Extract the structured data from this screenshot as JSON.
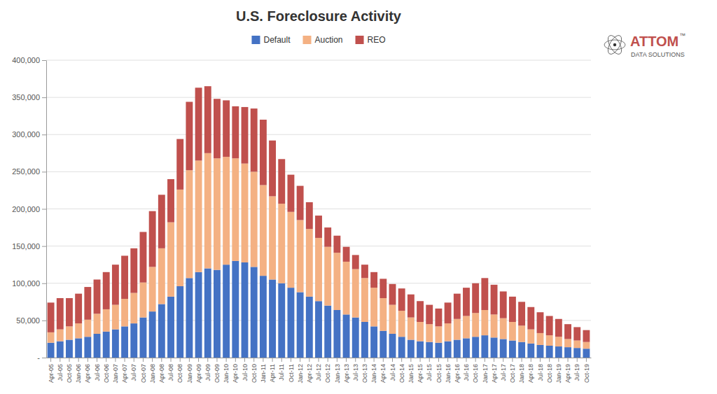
{
  "chart_data": {
    "type": "bar",
    "title": "U.S. Foreclosure Activity",
    "stacked": true,
    "grid": true,
    "legend": "top",
    "annotations": [
      "ATTOM",
      "DATA SOLUTIONS",
      "™"
    ],
    "categories": [
      "Apr-05",
      "Jul-05",
      "Oct-05",
      "Jan-06",
      "Apr-06",
      "Jul-06",
      "Oct-06",
      "Jan-07",
      "Apr-07",
      "Jul-07",
      "Oct-07",
      "Jan-08",
      "Apr-08",
      "Jul-08",
      "Oct-08",
      "Jan-09",
      "Apr-09",
      "Jul-09",
      "Oct-09",
      "Jan-10",
      "Apr-10",
      "Jul-10",
      "Oct-10",
      "Jan-11",
      "Apr-11",
      "Jul-11",
      "Oct-11",
      "Jan-12",
      "Apr-12",
      "Jul-12",
      "Oct-12",
      "Jan-13",
      "Apr-13",
      "Jul-13",
      "Oct-13",
      "Jan-14",
      "Apr-14",
      "Jul-14",
      "Oct-14",
      "Jan-15",
      "Apr-15",
      "Jul-15",
      "Oct-15",
      "Jan-16",
      "Apr-16",
      "Jul-16",
      "Oct-16",
      "Jan-17",
      "Apr-17",
      "Jul-17",
      "Oct-17",
      "Jan-18",
      "Apr-18",
      "Jul-18",
      "Oct-18",
      "Jan-19",
      "Apr-19",
      "Jul-19",
      "Oct-19"
    ],
    "series": [
      {
        "name": "Default",
        "color": "#4472C4",
        "values": [
          20000,
          22000,
          24000,
          26000,
          28000,
          32000,
          35000,
          38000,
          42000,
          46000,
          54000,
          62000,
          72000,
          82000,
          96000,
          107000,
          115000,
          120000,
          118000,
          125000,
          130000,
          128000,
          122000,
          110000,
          105000,
          100000,
          94000,
          88000,
          82000,
          76000,
          70000,
          64000,
          58000,
          54000,
          48000,
          42000,
          36000,
          32000,
          28000,
          24000,
          22000,
          21000,
          20000,
          22000,
          24000,
          26000,
          28000,
          30000,
          27000,
          25000,
          23000,
          21000,
          19000,
          17000,
          16000,
          15000,
          14000,
          13000,
          12000
        ]
      },
      {
        "name": "Auction",
        "color": "#F4B183",
        "values": [
          14000,
          16000,
          18000,
          20000,
          23000,
          27000,
          30000,
          33000,
          37000,
          41000,
          47000,
          60000,
          75000,
          100000,
          130000,
          145000,
          150000,
          155000,
          150000,
          145000,
          138000,
          133000,
          128000,
          122000,
          112000,
          107000,
          102000,
          97000,
          91000,
          85000,
          79000,
          77000,
          71000,
          65000,
          59000,
          52000,
          44000,
          39000,
          35000,
          30000,
          26000,
          24000,
          22000,
          24000,
          28000,
          30000,
          32000,
          34000,
          31000,
          28000,
          25000,
          22000,
          19000,
          16000,
          14000,
          13000,
          11000,
          10000,
          9000
        ]
      },
      {
        "name": "REO",
        "color": "#C0504D",
        "values": [
          40000,
          42000,
          38000,
          40000,
          44000,
          46000,
          50000,
          54000,
          58000,
          60000,
          68000,
          75000,
          72000,
          58000,
          68000,
          92000,
          98000,
          90000,
          80000,
          76000,
          70000,
          76000,
          85000,
          88000,
          75000,
          60000,
          50000,
          46000,
          36000,
          30000,
          26000,
          23000,
          20000,
          19000,
          18000,
          21000,
          26000,
          28000,
          30000,
          31000,
          28000,
          26000,
          24000,
          28000,
          34000,
          38000,
          40000,
          43000,
          40000,
          36000,
          34000,
          32000,
          30000,
          28000,
          26000,
          24000,
          20000,
          18000,
          16000
        ]
      }
    ],
    "ylim": [
      0,
      400000
    ],
    "yticks": [
      {
        "value": 0,
        "label": "-"
      },
      {
        "value": 50000,
        "label": "50,000"
      },
      {
        "value": 100000,
        "label": "100,000"
      },
      {
        "value": 150000,
        "label": "150,000"
      },
      {
        "value": 200000,
        "label": "200,000"
      },
      {
        "value": 250000,
        "label": "250,000"
      },
      {
        "value": 300000,
        "label": "300,000"
      },
      {
        "value": 350000,
        "label": "350,000"
      },
      {
        "value": 400000,
        "label": "400,000"
      }
    ]
  }
}
